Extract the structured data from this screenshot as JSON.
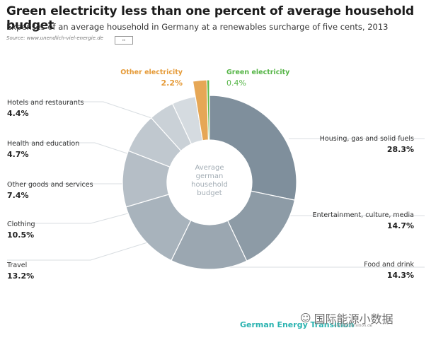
{
  "header": {
    "title": "Green electricity less than one percent of average household budget",
    "subtitle": "Expenses of an average household in Germany at a renewables surcharge of five cents, 2013",
    "source": "Source: www.unendlich-viel-energie.de"
  },
  "chart_data": {
    "type": "pie",
    "center_label": [
      "Average",
      "german",
      "household",
      "budget"
    ],
    "slices": [
      {
        "label": "Housing, gas and solid fuels",
        "value": 28.3,
        "display": "28.3%",
        "color": "#7f8f9c"
      },
      {
        "label": "Entertainment, culture, media",
        "value": 14.7,
        "display": "14.7%",
        "color": "#8d9ba6"
      },
      {
        "label": "Food and drink",
        "value": 14.3,
        "display": "14.3%",
        "color": "#9ba7b1"
      },
      {
        "label": "Travel",
        "value": 13.2,
        "display": "13.2%",
        "color": "#a8b3bc"
      },
      {
        "label": "Clothing",
        "value": 10.5,
        "display": "10.5%",
        "color": "#b5bec6"
      },
      {
        "label": "Other goods and services",
        "value": 7.4,
        "display": "7.4%",
        "color": "#c0c8cf"
      },
      {
        "label": "Health and education",
        "value": 4.7,
        "display": "4.7%",
        "color": "#cad1d7"
      },
      {
        "label": "Hotels and restaurants",
        "value": 4.4,
        "display": "4.4%",
        "color": "#d5dbe0"
      },
      {
        "label": "Other electricity",
        "value": 2.2,
        "display": "2.2%",
        "color": "#e6a756",
        "label_color": "#e59a37"
      },
      {
        "label": "Green electricity",
        "value": 0.4,
        "display": "0.4%",
        "color": "#5cb946",
        "label_color": "#54b445"
      }
    ]
  },
  "footer": {
    "brand": "German Energy Transition",
    "site": "energytransition.de",
    "watermark": "国际能源小数据"
  }
}
